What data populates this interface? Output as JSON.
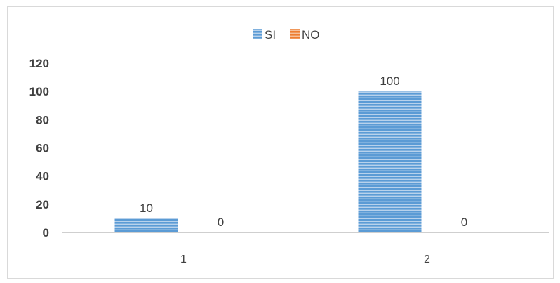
{
  "chart_data": {
    "type": "bar",
    "categories": [
      "1",
      "2"
    ],
    "series": [
      {
        "name": "SI",
        "values": [
          10,
          100
        ],
        "color": "#5b9bd5"
      },
      {
        "name": "NO",
        "values": [
          0,
          0
        ],
        "color": "#ed7d31"
      }
    ],
    "y_ticks": [
      "0",
      "20",
      "40",
      "60",
      "80",
      "100",
      "120"
    ],
    "ylim": [
      0,
      120
    ],
    "legend_position": "top",
    "grid": false
  }
}
